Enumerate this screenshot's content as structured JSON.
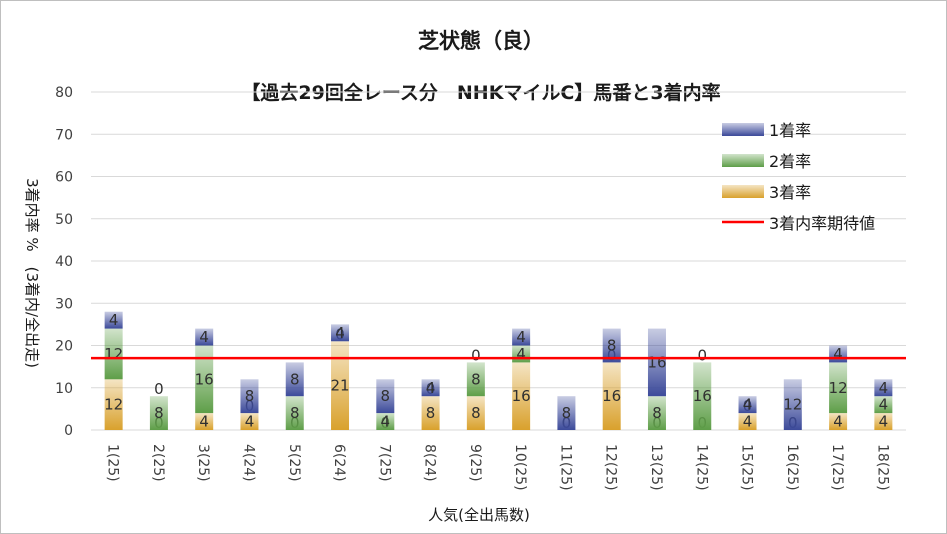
{
  "chart_data": {
    "type": "bar",
    "stacked": true,
    "title": "芝状態（良）",
    "subtitle": "【過去29回全レース分　NHKマイルC】馬番と3着内率",
    "xlabel": "人気(全出馬数)",
    "ylabel": "3着内率 %　(3着内/全出走)",
    "ylim": [
      0,
      80
    ],
    "yticks": [
      0,
      10,
      20,
      30,
      40,
      50,
      60,
      70,
      80
    ],
    "grid": true,
    "legend_position": "top-right",
    "categories": [
      "1(25)",
      "2(25)",
      "3(25)",
      "4(24)",
      "5(25)",
      "6(24)",
      "7(25)",
      "8(24)",
      "9(25)",
      "10(25)",
      "11(25)",
      "12(25)",
      "13(25)",
      "14(25)",
      "15(25)",
      "16(25)",
      "17(25)",
      "18(25)"
    ],
    "series": [
      {
        "name": "3着率",
        "color": "#d9a12c",
        "values": [
          12,
          0,
          4,
          4,
          0,
          21,
          0,
          8,
          8,
          16,
          0,
          16,
          0,
          0,
          4,
          0,
          4,
          4
        ]
      },
      {
        "name": "2着率",
        "color": "#5e9e48",
        "values": [
          12,
          8,
          16,
          0,
          8,
          0,
          4,
          0,
          8,
          4,
          0,
          0,
          8,
          16,
          0,
          0,
          12,
          4
        ]
      },
      {
        "name": "1着率",
        "color": "#3c4a9a",
        "values": [
          4,
          0,
          4,
          8,
          8,
          4,
          8,
          4,
          0,
          4,
          8,
          8,
          16,
          0,
          4,
          12,
          4,
          4
        ]
      }
    ],
    "reference_line": {
      "name": "3着内率期待値",
      "value": 17,
      "color": "#ff0000"
    }
  }
}
